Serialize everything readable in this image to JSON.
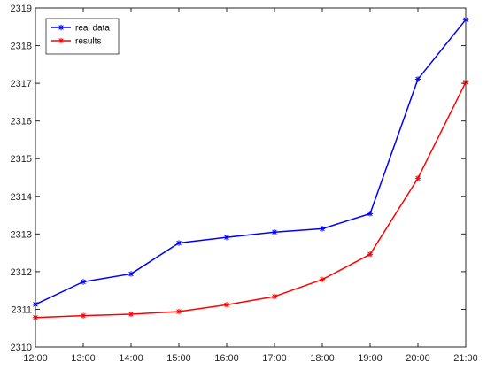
{
  "chart_data": {
    "type": "line",
    "title": "",
    "xlabel": "",
    "ylabel": "",
    "categories": [
      "12:00",
      "13:00",
      "14:00",
      "15:00",
      "16:00",
      "17:00",
      "18:00",
      "19:00",
      "20:00",
      "21:00"
    ],
    "ylim": [
      2310,
      2319
    ],
    "yticks": [
      "2310",
      "2311",
      "2312",
      "2313",
      "2314",
      "2315",
      "2316",
      "2317",
      "2318",
      "2319"
    ],
    "grid": false,
    "legend": "top-left",
    "marker": "asterisk",
    "series": [
      {
        "name": "real data",
        "color": "#0000ff",
        "values": [
          2311.13,
          2311.73,
          2311.94,
          2312.76,
          2312.91,
          2313.05,
          2313.14,
          2313.54,
          2317.11,
          2318.69
        ]
      },
      {
        "name": "results",
        "color": "#ff0000",
        "values": [
          2310.78,
          2310.83,
          2310.87,
          2310.94,
          2311.12,
          2311.34,
          2311.79,
          2312.46,
          2314.48,
          2317.03
        ]
      }
    ]
  }
}
